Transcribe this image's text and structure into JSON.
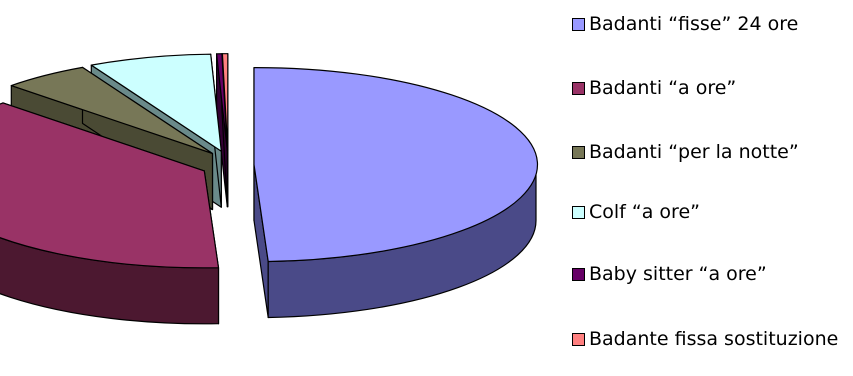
{
  "chart_data": {
    "type": "pie",
    "style": "3d-exploded",
    "categories": [
      "Badanti “fisse”  24 ore",
      "Badanti “a ore”",
      "Badanti “per la notte”",
      "Colf  “a ore”",
      "Baby sitter “a ore”",
      "Badante fissa sostituzione"
    ],
    "values": [
      49,
      38,
      5,
      7,
      0.3,
      0.3
    ],
    "unit": "%",
    "legend_position": "right",
    "colors": {
      "top": [
        "#9999ff",
        "#993366",
        "#777757",
        "#ccffff",
        "#660066",
        "#ff8080"
      ],
      "side": [
        "#4a4a88",
        "#4c1830",
        "#4a4a34",
        "#6a8a8a",
        "#330033",
        "#884040"
      ]
    }
  }
}
